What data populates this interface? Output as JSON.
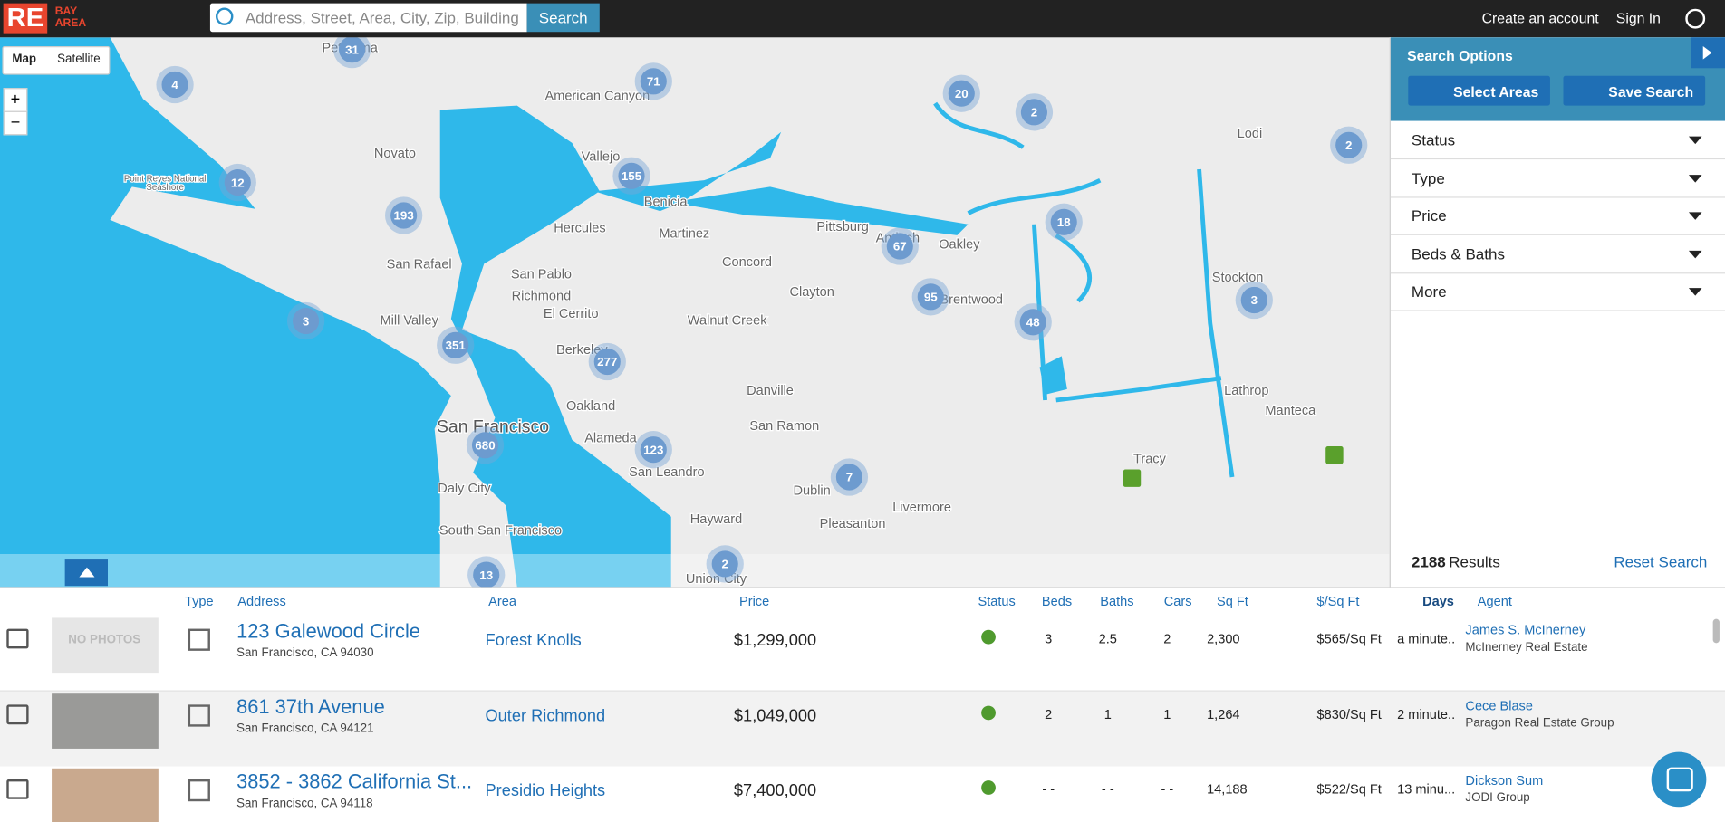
{
  "header": {
    "logo": "RE",
    "logo_sub": [
      "BAY",
      "AREA"
    ],
    "search_placeholder": "Address, Street, Area, City, Zip, Building",
    "search_button": "Search",
    "links": [
      "Create an account",
      "Sign In"
    ]
  },
  "map": {
    "toggle": [
      "Map",
      "Satellite"
    ],
    "zoom": [
      "+",
      "−"
    ],
    "clusters": [
      "31",
      "4",
      "71",
      "20",
      "2",
      "2",
      "12",
      "155",
      "193",
      "18",
      "67",
      "95",
      "3",
      "3",
      "48",
      "351",
      "277",
      "680",
      "123",
      "7",
      "2",
      "13"
    ],
    "places": [
      "American Canyon",
      "Novato",
      "Vallejo",
      "Benicia",
      "Point Reyes National",
      "Seashore",
      "Hercules",
      "Martinez",
      "Pittsburg",
      "Antioch",
      "Oakley",
      "Lodi",
      "Concord",
      "San Rafael",
      "San Pablo",
      "Richmond",
      "Clayton",
      "Brentwood",
      "Stockton",
      "El Cerrito",
      "Mill Valley",
      "Walnut Creek",
      "Berkeley",
      "Oakland",
      "Danville",
      "Lathrop",
      "Manteca",
      "San Francisco",
      "Alameda",
      "San Ramon",
      "San Leandro",
      "Tracy",
      "Daly City",
      "Dublin",
      "Livermore",
      "Hayward",
      "Pleasanton",
      "South San Francisco",
      "Union City",
      "Petaluma"
    ]
  },
  "panel": {
    "title": "Search Options",
    "buttons": [
      "Select Areas",
      "Save Search"
    ],
    "filters": [
      "Status",
      "Type",
      "Price",
      "Beds & Baths",
      "More"
    ],
    "count": "2188",
    "count_label": "Results",
    "reset": "Reset Search"
  },
  "table": {
    "headers": [
      "Type",
      "Address",
      "Area",
      "Price",
      "Status",
      "Beds",
      "Baths",
      "Cars",
      "Sq Ft",
      "$/Sq Ft",
      "Days",
      "Agent"
    ],
    "rows": [
      {
        "photo": "NO PHOTOS",
        "address": "123 Galewood Circle",
        "city": "San Francisco, CA 94030",
        "area": "Forest Knolls",
        "price": "$1,299,000",
        "beds": "3",
        "baths": "2.5",
        "cars": "2",
        "sqft": "2,300",
        "ppsf": "$565/Sq Ft",
        "days": "a minute..",
        "agent": "James S. McInerney",
        "office": "McInerney Real Estate"
      },
      {
        "address": "861 37th Avenue",
        "city": "San Francisco, CA 94121",
        "area": "Outer Richmond",
        "price": "$1,049,000",
        "beds": "2",
        "baths": "1",
        "cars": "1",
        "sqft": "1,264",
        "ppsf": "$830/Sq Ft",
        "days": "2 minute..",
        "agent": "Cece Blase",
        "office": "Paragon Real Estate Group"
      },
      {
        "address": "3852 - 3862 California St...",
        "city": "San Francisco, CA 94118",
        "area": "Presidio Heights",
        "price": "$7,400,000",
        "beds": "- -",
        "baths": "- -",
        "cars": "- -",
        "sqft": "14,188",
        "ppsf": "$522/Sq Ft",
        "days": "13 minu...",
        "agent": "Dickson Sum",
        "office": "JODI Group"
      }
    ]
  }
}
